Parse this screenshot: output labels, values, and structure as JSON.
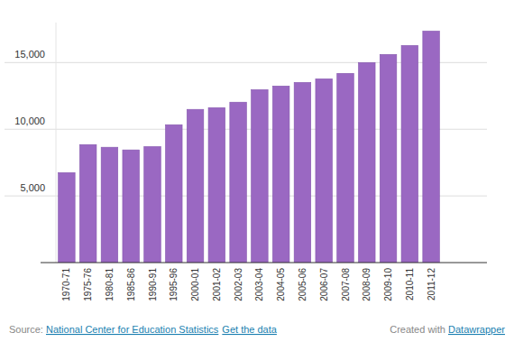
{
  "chart_data": {
    "type": "bar",
    "categories": [
      "1970-71",
      "1975-76",
      "1980-81",
      "1985-86",
      "1990-91",
      "1995-96",
      "2000-01",
      "2001-02",
      "2002-03",
      "2003-04",
      "2004-05",
      "2005-06",
      "2006-07",
      "2007-08",
      "2008-09",
      "2009-10",
      "2010-11",
      "2011-12"
    ],
    "values": [
      6750,
      8850,
      8650,
      8450,
      8700,
      10340,
      11490,
      11620,
      12030,
      12970,
      13240,
      13510,
      13780,
      14190,
      15000,
      15610,
      16280,
      17360
    ],
    "color": "#9a68c2",
    "ylim": [
      0,
      18000
    ],
    "yticks": [
      {
        "value": 5000,
        "label": "5,000"
      },
      {
        "value": 10000,
        "label": "10,000"
      },
      {
        "value": 15000,
        "label": "15,000"
      }
    ],
    "grid": true,
    "source_label": "Source:",
    "source": "National Center for Education Statistics",
    "data_link": "Get the data",
    "credit": "Created with",
    "credit_link": "Datawrapper"
  }
}
